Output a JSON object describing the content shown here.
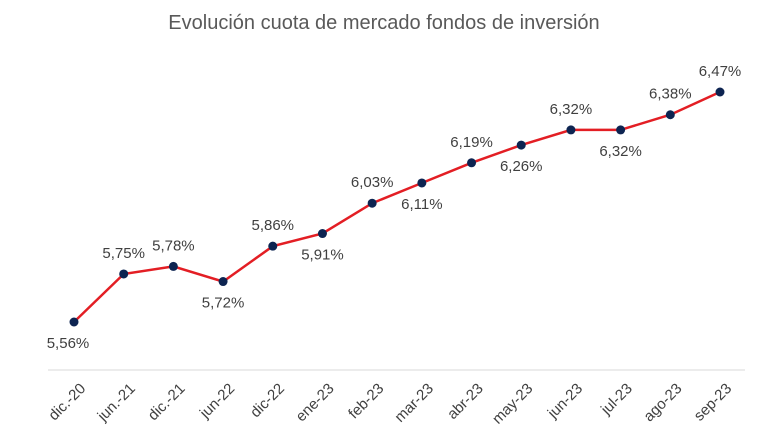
{
  "chart_data": {
    "type": "line",
    "title": "Evolución cuota de mercado fondos de inversión",
    "categories": [
      "dic.-20",
      "jun.-21",
      "dic.-21",
      "jun-22",
      "dic-22",
      "ene-23",
      "feb-23",
      "mar-23",
      "abr-23",
      "may-23",
      "jun-23",
      "jul-23",
      "ago-23",
      "sep-23"
    ],
    "series": [
      {
        "values": [
          5.56,
          5.75,
          5.78,
          5.72,
          5.86,
          5.91,
          6.03,
          6.11,
          6.19,
          6.26,
          6.32,
          6.32,
          6.38,
          6.47
        ],
        "labels": [
          "5,56%",
          "5,75%",
          "5,78%",
          "5,72%",
          "5,86%",
          "5,91%",
          "6,03%",
          "6,11%",
          "6,19%",
          "6,26%",
          "6,32%",
          "6,32%",
          "6,38%",
          "6,47%"
        ],
        "label_positions": [
          "below",
          "above",
          "above",
          "below",
          "above",
          "below",
          "above",
          "below",
          "above",
          "below",
          "above",
          "below",
          "above",
          "above"
        ],
        "line_color": "#e31e24",
        "marker_color": "#0d2451"
      }
    ],
    "xlabel": "",
    "ylabel": "",
    "ylim": [
      5.2,
      6.7
    ],
    "grid": false,
    "legend": "none"
  }
}
